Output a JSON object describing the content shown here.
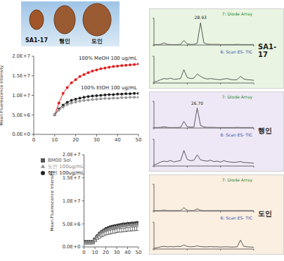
{
  "photo": {
    "labels": [
      "SA1-17",
      "행인",
      "도인"
    ]
  },
  "chart_data": [
    {
      "type": "line",
      "y_label": "Mean Fluorescence Intensity",
      "x": [
        10,
        12,
        14,
        16,
        18,
        20,
        22,
        24,
        26,
        28,
        30,
        32,
        34,
        36,
        38,
        40,
        42,
        44,
        46,
        48,
        50
      ],
      "xlim": [
        0,
        50
      ],
      "xticks": [
        0,
        10,
        20,
        30,
        40,
        50
      ],
      "ylim": [
        0,
        20000000
      ],
      "yticks": [
        {
          "value": 0,
          "label": "0.0E+0"
        },
        {
          "value": 5000000,
          "label": "5.0E+6"
        },
        {
          "value": 10000000,
          "label": "1.0E+7"
        },
        {
          "value": 15000000,
          "label": "1.5E+7"
        },
        {
          "value": 20000000,
          "label": "2.0E+7"
        }
      ],
      "series": [
        {
          "name": "100% MeOH 100 ug/mL",
          "color": "#e02020",
          "marker": "circle",
          "values": [
            5000000,
            8000000,
            10500000,
            12000000,
            13200000,
            14000000,
            14800000,
            15300000,
            15800000,
            16200000,
            16500000,
            16800000,
            17000000,
            17200000,
            17400000,
            17500000,
            17600000,
            17700000,
            17800000,
            17900000,
            18000000
          ]
        },
        {
          "name": "100% EtOH 100 ug/mL",
          "color": "#222222",
          "marker": "circle",
          "values": [
            5000000,
            6500000,
            7500000,
            8200000,
            8700000,
            9000000,
            9300000,
            9500000,
            9700000,
            9800000,
            9900000,
            10000000,
            10100000,
            10200000,
            10200000,
            10300000,
            10300000,
            10400000,
            10400000,
            10500000,
            10500000
          ]
        },
        {
          "color": "#999999",
          "marker": "circle",
          "values": [
            5000000,
            6200000,
            7000000,
            7600000,
            8000000,
            8300000,
            8500000,
            8700000,
            8800000,
            8900000,
            9000000,
            9100000,
            9200000,
            9200000,
            9300000,
            9300000,
            9400000,
            9400000,
            9500000,
            9500000,
            9500000
          ]
        }
      ]
    },
    {
      "type": "line",
      "y_label": "Mean Fluorescence Intensity",
      "legend": "upper left",
      "x": [
        0,
        2,
        4,
        6,
        8,
        10,
        12,
        14,
        16,
        18,
        20,
        22,
        24,
        26,
        28,
        30,
        32,
        34,
        36,
        38,
        40,
        42,
        44,
        46,
        48,
        50
      ],
      "xlim": [
        0,
        50
      ],
      "xticks": [
        0,
        10,
        20,
        30,
        40,
        50
      ],
      "ylim": [
        0,
        20000000
      ],
      "yticks": [
        {
          "value": 0,
          "label": "0.0E+0"
        },
        {
          "value": 5000000,
          "label": "5.0E+6"
        },
        {
          "value": 10000000,
          "label": "1.0E+7"
        },
        {
          "value": 15000000,
          "label": "1.5E+7"
        },
        {
          "value": 20000000,
          "label": "2.0E+7"
        }
      ],
      "series": [
        {
          "name": "BM00 Sol.",
          "color": "#555555",
          "marker": "square",
          "values": [
            1000000,
            1000000,
            1000000,
            1000000,
            1000000,
            1500000,
            2000000,
            2300000,
            2600000,
            2800000,
            3000000,
            3100000,
            3200000,
            3300000,
            3400000,
            3500000,
            3600000,
            3600000,
            3700000,
            3700000,
            3800000,
            3800000,
            3900000,
            3900000,
            4000000,
            4000000
          ]
        },
        {
          "name": "행인 100ug/mL",
          "color": "#222222",
          "marker": "circle",
          "values": [
            1200000,
            1200000,
            1200000,
            1200000,
            1200000,
            1800000,
            2500000,
            3000000,
            3400000,
            3700000,
            4000000,
            4200000,
            4400000,
            4500000,
            4600000,
            4700000,
            4800000,
            4900000,
            5000000,
            5000000,
            5100000,
            5100000,
            5200000,
            5200000,
            5300000,
            5300000
          ]
        },
        {
          "name": "도인 100ug/mL",
          "color": "#888888",
          "marker": "triangle",
          "values": [
            1100000,
            1100000,
            1100000,
            1100000,
            1100000,
            1700000,
            2300000,
            2800000,
            3200000,
            3500000,
            3700000,
            3900000,
            4100000,
            4200000,
            4300000,
            4400000,
            4500000,
            4600000,
            4700000,
            4700000,
            4800000,
            4800000,
            4900000,
            4900000,
            5000000,
            5000000
          ]
        }
      ]
    },
    {
      "type": "line",
      "title": "SA1-17",
      "tick_labels": false,
      "x": [
        0,
        2,
        4,
        6,
        8,
        10,
        12,
        14,
        16,
        18,
        20,
        22,
        24,
        26,
        28,
        30,
        32,
        34,
        36,
        38,
        40,
        42,
        44,
        46,
        48,
        50,
        52,
        54,
        56,
        58,
        60
      ],
      "xlim": [
        0,
        60
      ],
      "xticks": [
        0,
        20,
        40,
        60
      ],
      "ylim": [
        0,
        120
      ],
      "yticks": [
        0,
        120
      ],
      "annotations": [
        {
          "x": 28,
          "y": 100,
          "text": "28.93"
        }
      ],
      "series": [
        {
          "name": "7: Diode Array",
          "color": "#333333",
          "marker": "none",
          "values": [
            2,
            2,
            3,
            10,
            3,
            2,
            2,
            2,
            3,
            20,
            5,
            3,
            3,
            8,
            100,
            10,
            4,
            3,
            3,
            3,
            2,
            2,
            2,
            2,
            2,
            3,
            2,
            2,
            2,
            2,
            2
          ]
        },
        {
          "name": "6: Scan ES- TIC",
          "color": "#333333",
          "marker": "none",
          "values": [
            5,
            8,
            15,
            20,
            18,
            22,
            16,
            18,
            20,
            60,
            25,
            20,
            22,
            40,
            30,
            22,
            18,
            20,
            18,
            16,
            15,
            18,
            20,
            16,
            14,
            15,
            30,
            18,
            15,
            14,
            12
          ]
        }
      ]
    },
    {
      "type": "line",
      "title": "행인",
      "tick_labels": false,
      "x": [
        0,
        2,
        4,
        6,
        8,
        10,
        12,
        14,
        16,
        18,
        20,
        22,
        24,
        26,
        28,
        30,
        32,
        34,
        36,
        38,
        40,
        42,
        44,
        46,
        48,
        50,
        52,
        54,
        56,
        58,
        60
      ],
      "xlim": [
        0,
        60
      ],
      "xticks": [
        0,
        20,
        40,
        60
      ],
      "ylim": [
        0,
        120
      ],
      "yticks": [
        0,
        120
      ],
      "annotations": [
        {
          "x": 26,
          "y": 90,
          "text": "26.70"
        }
      ],
      "series": [
        {
          "name": "7: Diode Array",
          "color": "#333333",
          "marker": "none",
          "values": [
            2,
            2,
            3,
            6,
            3,
            2,
            2,
            2,
            3,
            30,
            6,
            4,
            4,
            90,
            12,
            5,
            3,
            3,
            3,
            2,
            2,
            2,
            2,
            2,
            2,
            3,
            2,
            2,
            2,
            2,
            2
          ]
        },
        {
          "name": "6: Scan ES- TIC",
          "color": "#333333",
          "marker": "none",
          "values": [
            5,
            10,
            18,
            22,
            20,
            25,
            18,
            22,
            24,
            70,
            30,
            24,
            26,
            50,
            28,
            24,
            22,
            26,
            20,
            22,
            18,
            24,
            20,
            18,
            16,
            18,
            20,
            16,
            15,
            14,
            12
          ]
        }
      ]
    },
    {
      "type": "line",
      "title": "도인",
      "tick_labels": false,
      "x": [
        0,
        2,
        4,
        6,
        8,
        10,
        12,
        14,
        16,
        18,
        20,
        22,
        24,
        26,
        28,
        30,
        32,
        34,
        36,
        38,
        40,
        42,
        44,
        46,
        48,
        50,
        52,
        54,
        56,
        58,
        60
      ],
      "xlim": [
        0,
        60
      ],
      "xticks": [
        0,
        20,
        40,
        60
      ],
      "ylim": [
        0,
        120
      ],
      "yticks": [
        0,
        120
      ],
      "series": [
        {
          "name": "7: Diode Array",
          "color": "#333333",
          "marker": "none",
          "values": [
            2,
            2,
            2,
            4,
            2,
            2,
            2,
            2,
            2,
            15,
            3,
            2,
            2,
            10,
            3,
            2,
            2,
            2,
            2,
            2,
            2,
            2,
            2,
            2,
            2,
            2,
            2,
            2,
            2,
            2,
            2
          ]
        },
        {
          "name": "6: Scan ES- TIC",
          "color": "#333333",
          "marker": "none",
          "values": [
            4,
            6,
            10,
            12,
            10,
            11,
            10,
            12,
            11,
            18,
            12,
            10,
            11,
            14,
            11,
            10,
            10,
            11,
            10,
            10,
            9,
            10,
            10,
            9,
            9,
            10,
            40,
            12,
            10,
            9,
            8
          ]
        }
      ]
    }
  ]
}
